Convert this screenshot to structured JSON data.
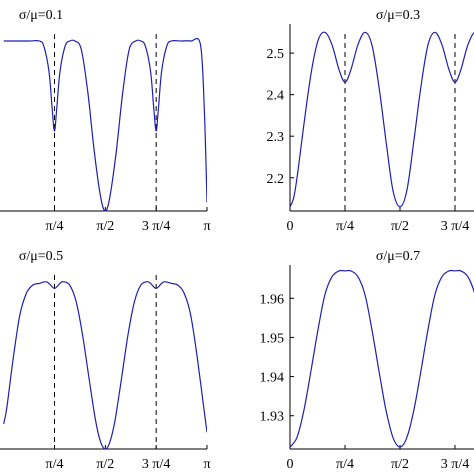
{
  "chart_data": [
    {
      "type": "line",
      "title": "σ/μ=0.1",
      "xlabel": "",
      "ylabel": "",
      "xlim": [
        0,
        3.14159
      ],
      "ylim": [
        0,
        1.1
      ],
      "x_ticks": [
        {
          "value": 0.7854,
          "label": "π/4"
        },
        {
          "value": 1.5708,
          "label": "π/2"
        },
        {
          "value": 2.3562,
          "label": "3 π/4"
        },
        {
          "value": 3.14159,
          "label": "π"
        }
      ],
      "y_ticks": [],
      "dashed_vlines": [
        0.7854,
        2.3562
      ],
      "series": [
        {
          "x": [
            0.0,
            0.1,
            0.25,
            0.4,
            0.55,
            0.62,
            0.7,
            0.75,
            0.7854,
            0.82,
            0.87,
            0.95,
            1.02,
            1.1,
            1.2,
            1.3,
            1.4,
            1.5,
            1.5708,
            1.64,
            1.74,
            1.84,
            1.94,
            2.04,
            2.12,
            2.19,
            2.27,
            2.32,
            2.3562,
            2.39,
            2.44,
            2.52,
            2.59,
            2.74,
            2.89,
            3.04,
            3.1,
            3.14159
          ],
          "values": [
            1.0,
            1.0,
            1.0,
            1.0,
            1.0,
            0.97,
            0.82,
            0.6,
            0.47,
            0.6,
            0.82,
            0.97,
            1.0,
            1.0,
            0.95,
            0.7,
            0.35,
            0.08,
            0.0,
            0.08,
            0.35,
            0.7,
            0.95,
            1.0,
            1.0,
            0.97,
            0.82,
            0.6,
            0.47,
            0.6,
            0.82,
            0.97,
            1.0,
            1.0,
            1.0,
            0.98,
            0.6,
            0.05
          ]
        }
      ]
    },
    {
      "type": "line",
      "title": "σ/μ=0.3",
      "xlabel": "",
      "ylabel": "",
      "xlim": [
        0,
        3.14159
      ],
      "ylim": [
        2.12,
        2.57
      ],
      "x_ticks": [
        {
          "value": 0,
          "label": "0"
        },
        {
          "value": 0.7854,
          "label": "π/4"
        },
        {
          "value": 1.5708,
          "label": "π/2"
        },
        {
          "value": 2.3562,
          "label": "3 π/4"
        }
      ],
      "y_ticks": [
        {
          "value": 2.2,
          "label": "2.2"
        },
        {
          "value": 2.3,
          "label": "2.3"
        },
        {
          "value": 2.4,
          "label": "2.4"
        },
        {
          "value": 2.5,
          "label": "2.5"
        }
      ],
      "dashed_vlines": [
        0.7854,
        2.3562
      ],
      "series": [
        {
          "x": [
            0.0,
            0.05,
            0.1,
            0.2,
            0.3,
            0.4,
            0.5,
            0.6,
            0.7,
            0.7854,
            0.87,
            0.97,
            1.07,
            1.17,
            1.27,
            1.37,
            1.47,
            1.5708,
            1.67,
            1.77,
            1.87,
            1.97,
            2.07,
            2.17,
            2.27,
            2.3562,
            2.44,
            2.54,
            2.64,
            2.74,
            2.84,
            2.94,
            3.04,
            3.09,
            3.14159
          ],
          "values": [
            2.13,
            2.15,
            2.2,
            2.33,
            2.45,
            2.53,
            2.55,
            2.52,
            2.46,
            2.43,
            2.46,
            2.52,
            2.55,
            2.52,
            2.42,
            2.29,
            2.17,
            2.13,
            2.17,
            2.29,
            2.42,
            2.52,
            2.55,
            2.52,
            2.46,
            2.43,
            2.46,
            2.52,
            2.55,
            2.53,
            2.45,
            2.33,
            2.2,
            2.15,
            2.13
          ]
        }
      ]
    },
    {
      "type": "line",
      "title": "σ/μ=0.5",
      "xlabel": "",
      "ylabel": "",
      "xlim": [
        0,
        3.14159
      ],
      "ylim": [
        0,
        1.1
      ],
      "x_ticks": [
        {
          "value": 0.7854,
          "label": "π/4"
        },
        {
          "value": 1.5708,
          "label": "π/2"
        },
        {
          "value": 2.3562,
          "label": "3 π/4"
        },
        {
          "value": 3.14159,
          "label": "π"
        }
      ],
      "y_ticks": [],
      "dashed_vlines": [
        0.7854,
        2.3562
      ],
      "series": [
        {
          "x": [
            0.0,
            0.05,
            0.15,
            0.25,
            0.35,
            0.45,
            0.55,
            0.65,
            0.7,
            0.7854,
            0.87,
            0.92,
            1.02,
            1.12,
            1.22,
            1.32,
            1.42,
            1.5,
            1.5708,
            1.64,
            1.72,
            1.82,
            1.92,
            2.02,
            2.12,
            2.22,
            2.27,
            2.3562,
            2.44,
            2.49,
            2.59,
            2.69,
            2.79,
            2.89,
            2.99,
            3.09,
            3.14159
          ],
          "values": [
            0.15,
            0.25,
            0.55,
            0.8,
            0.93,
            0.98,
            0.99,
            1.0,
            0.99,
            0.96,
            0.99,
            1.0,
            0.98,
            0.88,
            0.68,
            0.42,
            0.17,
            0.04,
            0.0,
            0.04,
            0.17,
            0.42,
            0.68,
            0.88,
            0.98,
            1.0,
            0.99,
            0.96,
            0.99,
            1.0,
            0.99,
            0.98,
            0.93,
            0.8,
            0.55,
            0.25,
            0.1
          ]
        }
      ]
    },
    {
      "type": "line",
      "title": "σ/μ=0.7",
      "xlabel": "",
      "ylabel": "",
      "xlim": [
        0,
        3.14159
      ],
      "ylim": [
        1.9215,
        1.9685
      ],
      "x_ticks": [
        {
          "value": 0,
          "label": "0"
        },
        {
          "value": 0.7854,
          "label": "π/4"
        },
        {
          "value": 1.5708,
          "label": "π/2"
        },
        {
          "value": 2.3562,
          "label": "3 π/4"
        }
      ],
      "y_ticks": [
        {
          "value": 1.93,
          "label": "1.93"
        },
        {
          "value": 1.94,
          "label": "1.94"
        },
        {
          "value": 1.95,
          "label": "1.95"
        },
        {
          "value": 1.96,
          "label": "1.96"
        }
      ],
      "dashed_vlines": [],
      "series": [
        {
          "x": [
            0.0,
            0.1,
            0.2,
            0.3,
            0.4,
            0.5,
            0.6,
            0.7,
            0.7854,
            0.87,
            0.97,
            1.07,
            1.17,
            1.27,
            1.37,
            1.47,
            1.5708,
            1.67,
            1.77,
            1.87,
            1.97,
            2.07,
            2.17,
            2.27,
            2.3562,
            2.44,
            2.54,
            2.64,
            2.74,
            2.84,
            2.94,
            3.04,
            3.14159
          ],
          "values": [
            1.922,
            1.9245,
            1.9315,
            1.9415,
            1.952,
            1.961,
            1.9655,
            1.967,
            1.967,
            1.967,
            1.9655,
            1.961,
            1.952,
            1.9415,
            1.9315,
            1.9245,
            1.922,
            1.9245,
            1.9315,
            1.9415,
            1.952,
            1.961,
            1.9655,
            1.967,
            1.967,
            1.967,
            1.9655,
            1.961,
            1.952,
            1.9415,
            1.9315,
            1.9245,
            1.922
          ]
        }
      ]
    }
  ]
}
